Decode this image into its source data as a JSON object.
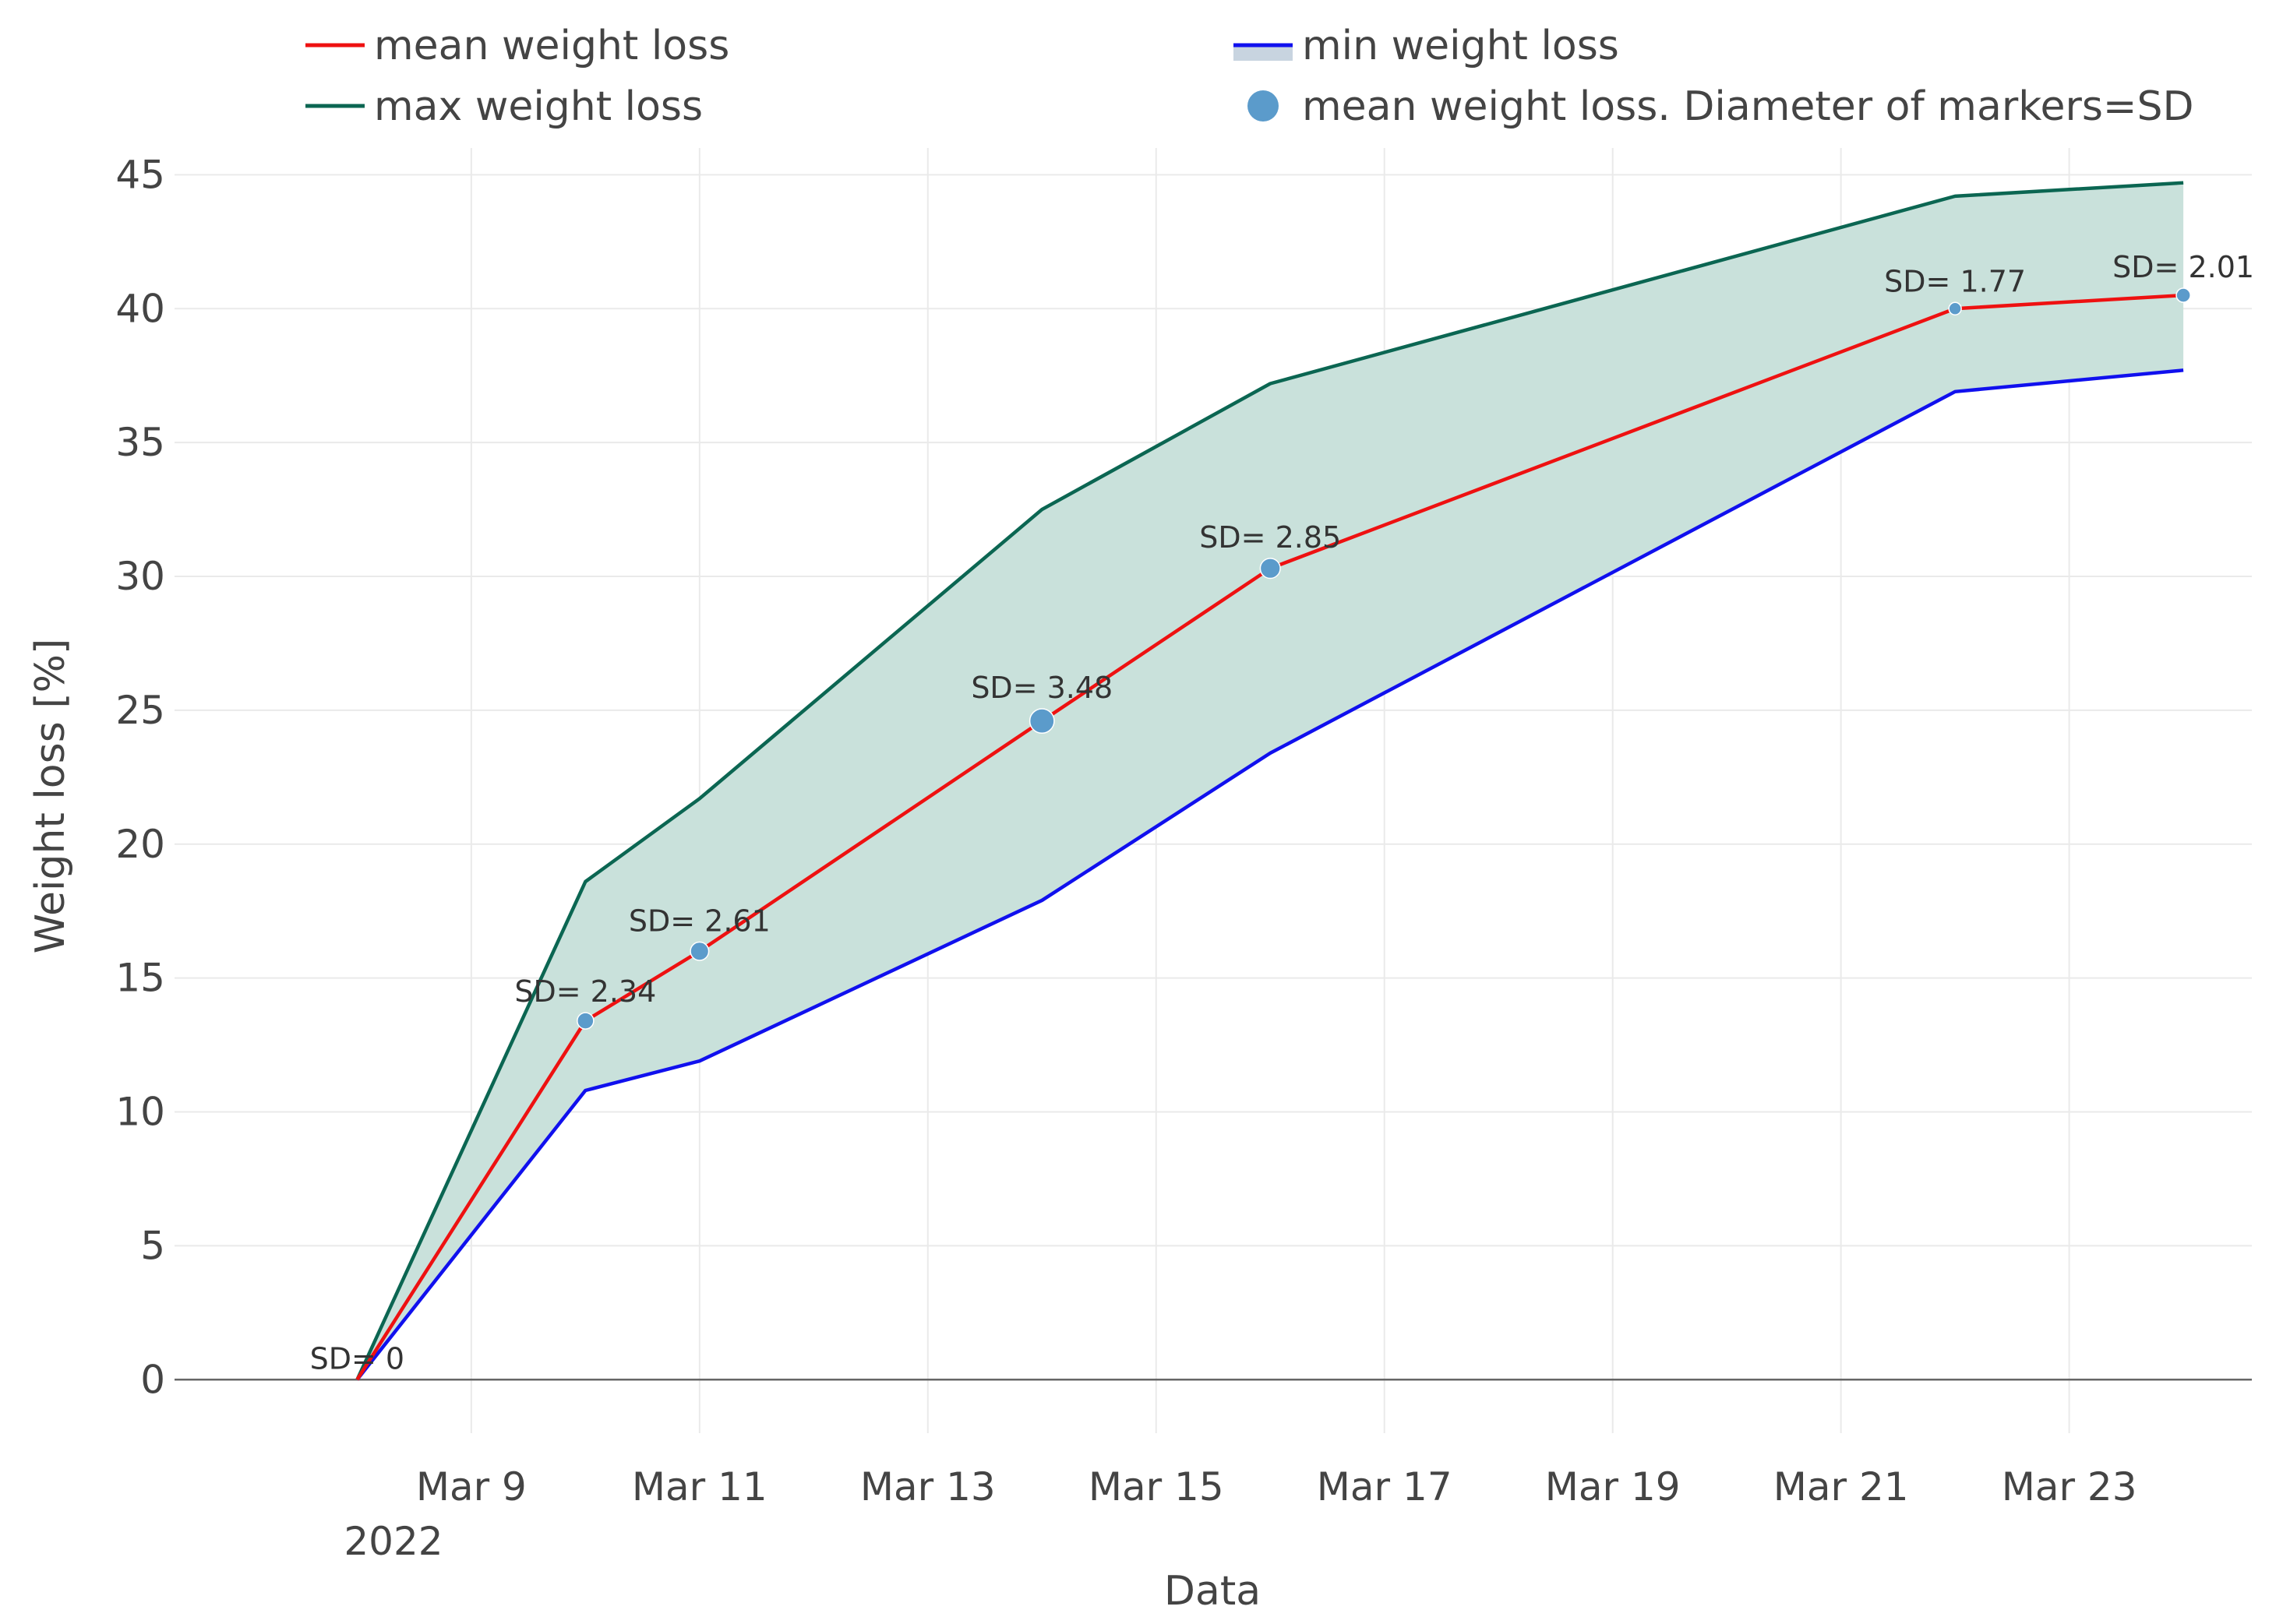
{
  "chart_data": {
    "type": "line",
    "title": "",
    "xlabel": "Data",
    "ylabel": "Weight loss [%]",
    "x_tick_labels": [
      "Mar 9",
      "Mar 11",
      "Mar 13",
      "Mar 15",
      "Mar 17",
      "Mar 19",
      "Mar 21",
      "Mar 23"
    ],
    "x_tick_days": [
      9,
      11,
      13,
      15,
      17,
      19,
      21,
      23
    ],
    "x_year_label": "2022",
    "y_ticks": [
      0,
      5,
      10,
      15,
      20,
      25,
      30,
      35,
      40,
      45
    ],
    "ylim": [
      -2,
      46
    ],
    "xlim_days": [
      6.4,
      24.6
    ],
    "grid": true,
    "legend_position": "top",
    "colors": {
      "mean": "#ee1111",
      "max": "#0b6652",
      "min": "#1010ee",
      "fill": "#c9e1db",
      "marker": "#5b9bcb",
      "legend_min_band": "#c8d4e0",
      "grid": "#eaeaea",
      "zero_line": "#666666",
      "tick_text": "#444444",
      "label_text": "#333333"
    },
    "x_days": [
      8,
      10,
      11,
      14,
      16,
      22,
      24
    ],
    "x_dates": [
      "2022-03-08",
      "2022-03-10",
      "2022-03-11",
      "2022-03-14",
      "2022-03-16",
      "2022-03-22",
      "2022-03-24"
    ],
    "series": [
      {
        "key": "mean",
        "name": "mean weight loss",
        "values": [
          0,
          13.4,
          16.0,
          24.6,
          30.3,
          40.0,
          40.5
        ]
      },
      {
        "key": "max",
        "name": "max weight loss",
        "values": [
          0,
          18.6,
          21.7,
          32.5,
          37.2,
          44.2,
          44.7
        ]
      },
      {
        "key": "min",
        "name": "min weight loss",
        "values": [
          0,
          10.8,
          11.9,
          17.9,
          23.4,
          36.9,
          37.7
        ]
      }
    ],
    "markers": {
      "name": "mean weight loss. Diameter of markers=SD",
      "sd": [
        0,
        2.34,
        2.61,
        3.48,
        2.85,
        1.77,
        2.01
      ],
      "labels": [
        "SD= 0",
        "SD= 2.34",
        "SD= 2.61",
        "SD= 3.48",
        "SD= 2.85",
        "SD= 1.77",
        "SD= 2.01"
      ]
    },
    "legend": [
      {
        "key": "mean",
        "label": "mean weight loss"
      },
      {
        "key": "min",
        "label": "min weight loss"
      },
      {
        "key": "max",
        "label": "max weight loss"
      },
      {
        "key": "markers",
        "label": "mean weight loss. Diameter of markers=SD"
      }
    ]
  }
}
